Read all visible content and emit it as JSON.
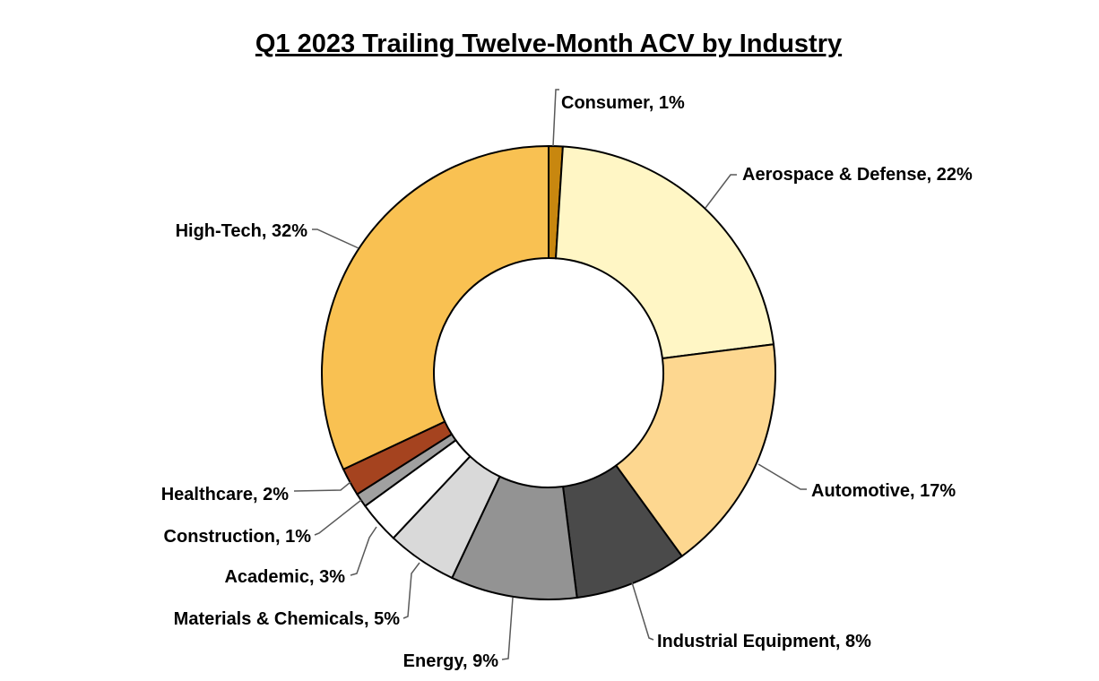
{
  "chart_data": {
    "type": "pie",
    "variant": "donut",
    "title": "Q1 2023 Trailing Twelve-Month ACV by Industry",
    "unit": "%",
    "legend": "none",
    "data_labels": "outside with leader lines",
    "slices": [
      {
        "label": "Consumer",
        "value": 1,
        "color": "#C8870F"
      },
      {
        "label": "Aerospace & Defense",
        "value": 22,
        "color": "#FFF6C5"
      },
      {
        "label": "Automotive",
        "value": 17,
        "color": "#FDD790"
      },
      {
        "label": "Industrial Equipment",
        "value": 8,
        "color": "#4A4A4A"
      },
      {
        "label": "Energy",
        "value": 9,
        "color": "#939393"
      },
      {
        "label": "Materials & Chemicals",
        "value": 5,
        "color": "#D9D9D9"
      },
      {
        "label": "Academic",
        "value": 3,
        "color": "#FFFFFF"
      },
      {
        "label": "Construction",
        "value": 1,
        "color": "#A0A0A0"
      },
      {
        "label": "Healthcare",
        "value": 2,
        "color": "#A5431F"
      },
      {
        "label": "High-Tech",
        "value": 32,
        "color": "#F9C152"
      }
    ],
    "label_texts": [
      "Consumer, 1%",
      "Aerospace & Defense, 22%",
      "Automotive, 17%",
      "Industrial Equipment, 8%",
      "Energy, 9%",
      "Materials & Chemicals, 5%",
      "Academic, 3%",
      "Construction, 1%",
      "Healthcare, 2%",
      "High-Tech, 32%"
    ]
  }
}
